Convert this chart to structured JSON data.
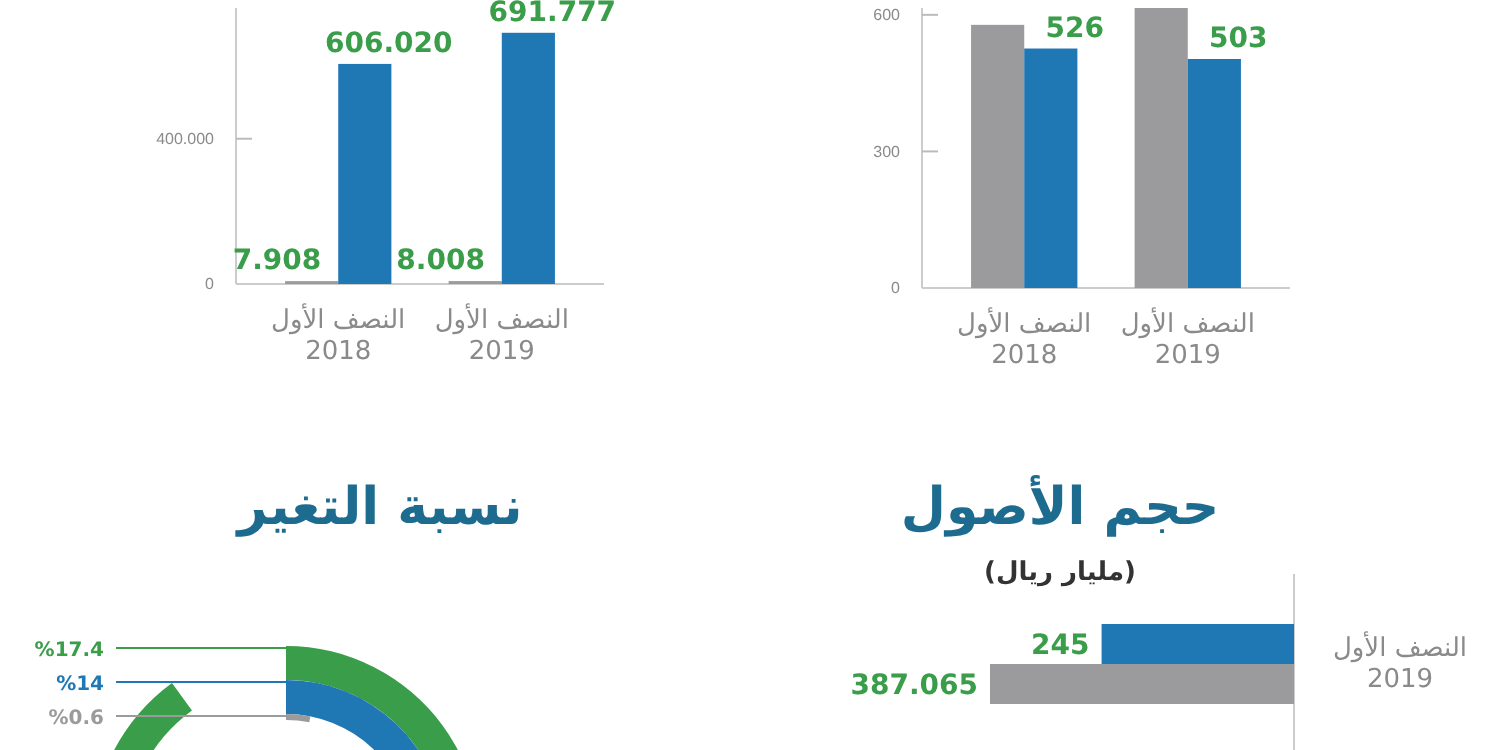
{
  "chart_data": [
    {
      "type": "bar",
      "categories": [
        "النصف الأول\n2018",
        "النصف الأول\n2019"
      ],
      "series": [
        {
          "color": "#9b9a9c",
          "values": [
            7.908,
            8.008
          ],
          "value_labels": [
            "7.908",
            "8.008"
          ]
        },
        {
          "color": "#1f78b4",
          "values": [
            606.02,
            691.777
          ],
          "value_labels": [
            "606.020",
            "691.777"
          ]
        }
      ],
      "ylim": [
        0,
        760
      ],
      "yticks": [
        0,
        {
          "value": 400,
          "label": "400.000"
        }
      ],
      "grid": false
    },
    {
      "type": "bar",
      "categories": [
        "النصف الأول\n2018",
        "النصف الأول\n2019"
      ],
      "series": [
        {
          "color": "#9b9a9c",
          "values": [
            578,
            615
          ],
          "value_labels": [
            null,
            null
          ]
        },
        {
          "color": "#1f78b4",
          "values": [
            526,
            503
          ],
          "value_labels": [
            "526",
            "503"
          ]
        }
      ],
      "ylim": [
        0,
        615
      ],
      "yticks": [
        0,
        300,
        600
      ],
      "grid": false
    },
    {
      "type": "other",
      "title": "نسبة التغير",
      "categories": [
        null,
        null,
        null
      ],
      "values": [
        17.4,
        14,
        0.6
      ],
      "colors": [
        "#3a9d4a",
        "#1f78b4",
        "#9b9a9c"
      ],
      "value_labels": [
        "%17.4",
        "%14",
        "%0.6"
      ]
    },
    {
      "type": "bar",
      "orientation": "horizontal",
      "title": "حجم الأصول",
      "subtitle": "(مليار ريال)",
      "categories": [
        "النصف الأول\n2019"
      ],
      "series": [
        {
          "color": "#1f78b4",
          "values": [
            245
          ],
          "value_labels": [
            "245"
          ]
        },
        {
          "color": "#9b9a9c",
          "values": [
            387.065
          ],
          "value_labels": [
            "387.065"
          ]
        }
      ]
    }
  ]
}
